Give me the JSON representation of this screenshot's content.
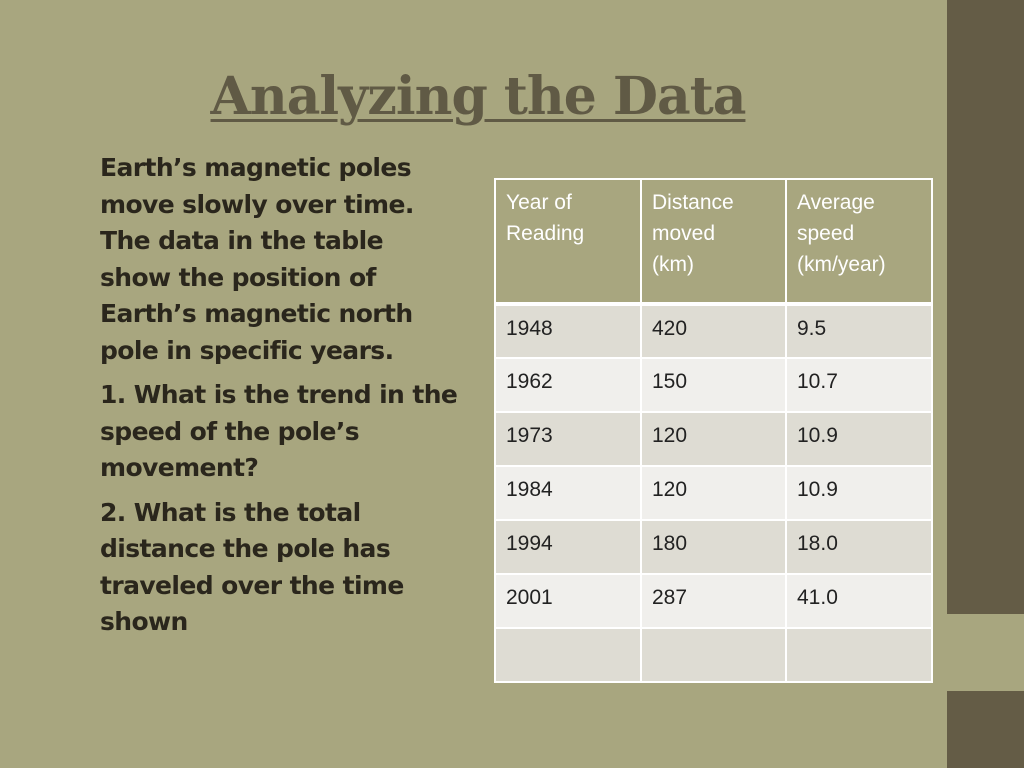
{
  "slide": {
    "title": "Analyzing the Data",
    "paragraphs": [
      "Earth’s magnetic poles move slowly over time. The data in the table show the position of Earth’s magnetic north pole in specific years.",
      "1. What is the trend in the speed of the pole’s movement?",
      "2. What is the total distance the pole has traveled over the time shown"
    ]
  },
  "table": {
    "headers": [
      [
        "Year of",
        "Reading"
      ],
      [
        "Distance",
        "moved",
        "(km)"
      ],
      [
        "Average",
        "speed",
        "(km/year)"
      ]
    ],
    "rows": [
      [
        "1948",
        "420",
        "9.5"
      ],
      [
        "1962",
        "150",
        "10.7"
      ],
      [
        "1973",
        "120",
        "10.9"
      ],
      [
        "1984",
        "120",
        "10.9"
      ],
      [
        "1994",
        "180",
        "18.0"
      ],
      [
        "2001",
        "287",
        "41.0"
      ],
      [
        "",
        "",
        ""
      ]
    ]
  },
  "colors": {
    "background": "#a8a67f",
    "side_band": "#645c46",
    "title": "#605a45",
    "row_odd": "#dedcd3",
    "row_even": "#f0efec"
  }
}
